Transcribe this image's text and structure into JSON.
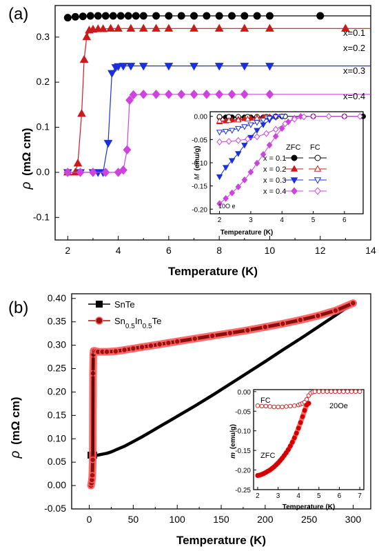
{
  "chart_data": [
    {
      "panel": "(a)",
      "type": "line",
      "ylabel_symbol": "ρ",
      "ylabel_unit": "(mΩ cm)",
      "xlabel": "Temperature (K)",
      "xlim": [
        1.5,
        14
      ],
      "ylim": [
        -0.15,
        0.37
      ],
      "xticks": [
        "2",
        "4",
        "6",
        "8",
        "10",
        "12",
        "14"
      ],
      "yticks": [
        "-0.1",
        "0.0",
        "0.1",
        "0.2",
        "0.3"
      ],
      "series": [
        {
          "name": "x=0.1",
          "color": "#000000",
          "marker": "circle",
          "x": [
            2.0,
            2.3,
            2.6,
            2.9,
            3.2,
            3.5,
            3.8,
            4.1,
            4.4,
            4.7,
            5.0,
            5.5,
            6.0,
            6.5,
            7.0,
            7.5,
            8.0,
            8.5,
            9.0,
            9.5,
            10.0,
            12.0,
            14.0
          ],
          "y": [
            0.343,
            0.345,
            0.346,
            0.347,
            0.347,
            0.347,
            0.347,
            0.347,
            0.347,
            0.347,
            0.347,
            0.347,
            0.347,
            0.347,
            0.347,
            0.347,
            0.347,
            0.347,
            0.347,
            0.347,
            0.347,
            0.347,
            0.347
          ]
        },
        {
          "name": "x=0.2",
          "color": "#cc1a1a",
          "marker": "triangle-up",
          "x": [
            2.0,
            2.3,
            2.4,
            2.55,
            2.65,
            2.75,
            2.85,
            3.0,
            3.2,
            3.4,
            3.7,
            4.0,
            4.5,
            5.0,
            5.5,
            6.0,
            7.0,
            8.0,
            9.0,
            10.0,
            13.0,
            14.0
          ],
          "y": [
            0.0,
            0.0,
            0.02,
            0.13,
            0.25,
            0.3,
            0.315,
            0.317,
            0.318,
            0.318,
            0.319,
            0.319,
            0.319,
            0.319,
            0.319,
            0.319,
            0.319,
            0.319,
            0.319,
            0.319,
            0.319,
            0.319
          ]
        },
        {
          "name": "x=0.3",
          "color": "#1a2fe0",
          "marker": "triangle-down",
          "x": [
            2.0,
            2.5,
            3.0,
            3.2,
            3.4,
            3.6,
            3.75,
            3.9,
            4.0,
            4.2,
            4.5,
            5.0,
            6.0,
            7.0,
            8.0,
            9.0,
            10.0,
            12.0,
            14.0
          ],
          "y": [
            0.0,
            0.0,
            0.0,
            0.0,
            0.0,
            0.065,
            0.22,
            0.233,
            0.235,
            0.236,
            0.236,
            0.236,
            0.236,
            0.236,
            0.236,
            0.236,
            0.236,
            0.236,
            0.236
          ]
        },
        {
          "name": "x=0.4",
          "color": "#cc44dd",
          "marker": "diamond",
          "x": [
            2.0,
            2.5,
            3.0,
            3.5,
            4.0,
            4.2,
            4.35,
            4.45,
            4.6,
            5.0,
            5.5,
            6.0,
            6.5,
            7.0,
            7.5,
            8.0,
            8.5,
            9.0,
            10.0,
            14.0
          ],
          "y": [
            0.0,
            0.0,
            0.0,
            0.0,
            0.0,
            0.005,
            0.05,
            0.16,
            0.172,
            0.173,
            0.173,
            0.173,
            0.173,
            0.173,
            0.173,
            0.173,
            0.173,
            0.173,
            0.173,
            0.173
          ]
        }
      ],
      "labels": [
        "x=0.1",
        "x=0.2",
        "x=0.3",
        "x=0.4"
      ],
      "inset": {
        "ylabel_symbol": "M",
        "ylabel_unit": "(emu/g)",
        "xlabel": "Temperature (K)",
        "xlim": [
          1.7,
          6.6
        ],
        "ylim": [
          -0.21,
          0.01
        ],
        "xticks": [
          "2",
          "3",
          "4",
          "5",
          "6"
        ],
        "yticks": [
          "0.00",
          "-0.05",
          "-0.10",
          "-0.15",
          "-0.20"
        ],
        "legend_header": [
          "ZFC",
          "FC"
        ],
        "legend_rows": [
          "x = 0.1",
          "x = 0.2",
          "x = 0.3",
          "x = 0.4"
        ],
        "field_label": "10O e",
        "series": [
          {
            "name": "x = 0.1 ZFC",
            "color": "#000000",
            "marker": "circle",
            "filled": true,
            "x": [
              2.0,
              2.2,
              2.4,
              2.6,
              2.8,
              3.0,
              3.2,
              3.4,
              3.6,
              3.8,
              4.0,
              5.0,
              6.0,
              6.6
            ],
            "y": [
              -0.002,
              -0.002,
              -0.002,
              -0.002,
              -0.002,
              -0.002,
              -0.002,
              -0.002,
              -0.002,
              -0.001,
              0.0,
              0.0,
              0.0,
              0.0
            ]
          },
          {
            "name": "x = 0.1 FC",
            "color": "#000000",
            "marker": "circle",
            "filled": false,
            "x": [
              2.0,
              2.3,
              2.6,
              2.9,
              3.2,
              3.5,
              3.8,
              4.1
            ],
            "y": [
              -0.001,
              -0.001,
              -0.001,
              -0.001,
              -0.001,
              -0.001,
              0.0,
              0.0
            ]
          },
          {
            "name": "x = 0.2 ZFC",
            "color": "#cc1a1a",
            "marker": "triangle-up",
            "filled": true,
            "x": [
              2.0,
              2.2,
              2.4,
              2.6,
              2.8,
              3.0,
              3.2,
              3.4,
              3.6,
              3.8
            ],
            "y": [
              -0.012,
              -0.01,
              -0.008,
              -0.006,
              -0.005,
              -0.004,
              -0.003,
              -0.002,
              -0.001,
              0.0
            ]
          },
          {
            "name": "x = 0.2 FC",
            "color": "#cc1a1a",
            "marker": "triangle-up",
            "filled": false,
            "x": [
              2.0,
              2.3,
              2.6,
              2.9,
              3.2,
              3.5
            ],
            "y": [
              -0.01,
              -0.009,
              -0.008,
              -0.006,
              -0.004,
              -0.002
            ]
          },
          {
            "name": "x = 0.3 ZFC",
            "color": "#1a2fe0",
            "marker": "triangle-down",
            "filled": true,
            "x": [
              2.0,
              2.2,
              2.4,
              2.6,
              2.8,
              3.0,
              3.2,
              3.4,
              3.6,
              3.8,
              4.0
            ],
            "y": [
              -0.13,
              -0.11,
              -0.095,
              -0.08,
              -0.062,
              -0.045,
              -0.03,
              -0.018,
              -0.008,
              -0.002,
              0.0
            ]
          },
          {
            "name": "x = 0.3 FC",
            "color": "#1a2fe0",
            "marker": "triangle-down",
            "filled": false,
            "x": [
              2.0,
              2.2,
              2.4,
              2.6,
              2.8,
              3.0,
              3.2,
              3.4,
              3.6,
              3.8,
              4.0
            ],
            "y": [
              -0.034,
              -0.032,
              -0.03,
              -0.026,
              -0.022,
              -0.018,
              -0.013,
              -0.008,
              -0.004,
              -0.001,
              0.0
            ]
          },
          {
            "name": "x = 0.4 ZFC",
            "color": "#cc44dd",
            "marker": "diamond",
            "filled": true,
            "x": [
              2.0,
              2.2,
              2.4,
              2.6,
              2.8,
              3.0,
              3.2,
              3.4,
              3.6,
              3.8,
              4.0,
              4.2,
              4.4,
              4.6
            ],
            "y": [
              -0.188,
              -0.177,
              -0.165,
              -0.152,
              -0.137,
              -0.12,
              -0.101,
              -0.082,
              -0.062,
              -0.043,
              -0.026,
              -0.012,
              -0.004,
              0.0
            ]
          },
          {
            "name": "x = 0.4 FC",
            "color": "#cc44dd",
            "marker": "diamond",
            "filled": false,
            "x": [
              2.0,
              2.3,
              2.6,
              2.9,
              3.2,
              3.5,
              3.8,
              4.1,
              4.4,
              4.7,
              5.0,
              5.5,
              6.0,
              6.5
            ],
            "y": [
              -0.055,
              -0.054,
              -0.052,
              -0.049,
              -0.044,
              -0.037,
              -0.028,
              -0.016,
              -0.006,
              -0.001,
              0.0,
              0.0,
              0.0,
              0.0
            ]
          }
        ]
      }
    },
    {
      "panel": "(b)",
      "type": "line",
      "ylabel_symbol": "ρ",
      "ylabel_unit": "(mΩ cm)",
      "xlabel": "Temperature (K)",
      "xlim": [
        -20,
        320
      ],
      "ylim": [
        -0.05,
        0.41
      ],
      "xticks": [
        "0",
        "50",
        "100",
        "150",
        "200",
        "250",
        "300"
      ],
      "yticks": [
        "-0.05",
        "0.00",
        "0.05",
        "0.10",
        "0.15",
        "0.20",
        "0.25",
        "0.30",
        "0.35",
        "0.40"
      ],
      "legend": [
        "SnTe",
        "Sn0.5In0.5Te"
      ],
      "series": [
        {
          "name": "SnTe",
          "color": "#000000",
          "marker": "square",
          "x": [
            2,
            4,
            5,
            6,
            8,
            10,
            12,
            15,
            20,
            25,
            30,
            40,
            50,
            60,
            70,
            80,
            90,
            100,
            120,
            140,
            160,
            180,
            200,
            220,
            240,
            260,
            280,
            300
          ],
          "y": [
            0.065,
            0.065,
            0.065,
            0.065,
            0.065,
            0.065,
            0.066,
            0.067,
            0.069,
            0.072,
            0.076,
            0.084,
            0.094,
            0.104,
            0.115,
            0.126,
            0.137,
            0.148,
            0.17,
            0.193,
            0.217,
            0.241,
            0.265,
            0.29,
            0.314,
            0.339,
            0.364,
            0.39
          ]
        },
        {
          "name": "Sn0.5In0.5Te",
          "color": "#c00000",
          "marker": "circle",
          "x": [
            2,
            2.5,
            3,
            3.5,
            4,
            4.3,
            4.6,
            5,
            6,
            8,
            10,
            15,
            20,
            30,
            40,
            50,
            60,
            70,
            80,
            90,
            100,
            120,
            140,
            160,
            180,
            200,
            220,
            240,
            260,
            280,
            300
          ],
          "y": [
            0.0,
            0.005,
            0.012,
            0.022,
            0.055,
            0.24,
            0.28,
            0.288,
            0.288,
            0.287,
            0.286,
            0.286,
            0.286,
            0.287,
            0.29,
            0.293,
            0.296,
            0.299,
            0.302,
            0.305,
            0.308,
            0.314,
            0.32,
            0.326,
            0.332,
            0.339,
            0.346,
            0.354,
            0.363,
            0.374,
            0.39
          ]
        }
      ],
      "inset": {
        "ylabel_symbol": "m",
        "ylabel_unit": "(emu/g)",
        "xlabel": "Temperature (K)",
        "xlim": [
          1.8,
          7.2
        ],
        "ylim": [
          -0.25,
          0.005
        ],
        "xticks": [
          "2",
          "3",
          "4",
          "5",
          "6",
          "7"
        ],
        "yticks": [
          "0.00",
          "-0.05",
          "-0.10",
          "-0.15",
          "-0.20",
          "-0.25"
        ],
        "labels": [
          "FC",
          "ZFC",
          "20Oe"
        ],
        "series": [
          {
            "name": "FC",
            "color": "#cc2a2a",
            "marker": "circle",
            "filled": false,
            "x": [
              2.0,
              2.2,
              2.4,
              2.6,
              2.8,
              3.0,
              3.2,
              3.4,
              3.6,
              3.8,
              4.0,
              4.1,
              4.2,
              4.3,
              4.4,
              4.5,
              4.6,
              4.7,
              4.8,
              5.0,
              5.2,
              5.4,
              5.6,
              5.8,
              6.0,
              6.2,
              6.4,
              6.6,
              6.8,
              7.0
            ],
            "y": [
              -0.036,
              -0.037,
              -0.037,
              -0.038,
              -0.039,
              -0.039,
              -0.039,
              -0.038,
              -0.037,
              -0.036,
              -0.034,
              -0.032,
              -0.03,
              -0.027,
              -0.02,
              -0.01,
              -0.004,
              -0.001,
              0.0,
              0.0,
              0.0,
              0.0,
              0.0,
              0.0,
              0.0,
              0.0,
              0.0,
              0.0,
              0.0,
              0.0
            ]
          },
          {
            "name": "ZFC",
            "color": "#cc0000",
            "marker": "circle",
            "filled": true,
            "x": [
              2.0,
              2.1,
              2.2,
              2.3,
              2.4,
              2.5,
              2.6,
              2.7,
              2.8,
              2.9,
              3.0,
              3.1,
              3.2,
              3.3,
              3.4,
              3.5,
              3.6,
              3.7,
              3.8,
              3.9,
              4.0,
              4.1,
              4.2,
              4.3,
              4.4,
              4.5
            ],
            "y": [
              -0.214,
              -0.213,
              -0.211,
              -0.209,
              -0.206,
              -0.203,
              -0.2,
              -0.196,
              -0.192,
              -0.187,
              -0.182,
              -0.176,
              -0.17,
              -0.163,
              -0.156,
              -0.148,
              -0.139,
              -0.129,
              -0.118,
              -0.106,
              -0.093,
              -0.079,
              -0.064,
              -0.048,
              -0.034,
              -0.03
            ]
          }
        ]
      }
    }
  ]
}
